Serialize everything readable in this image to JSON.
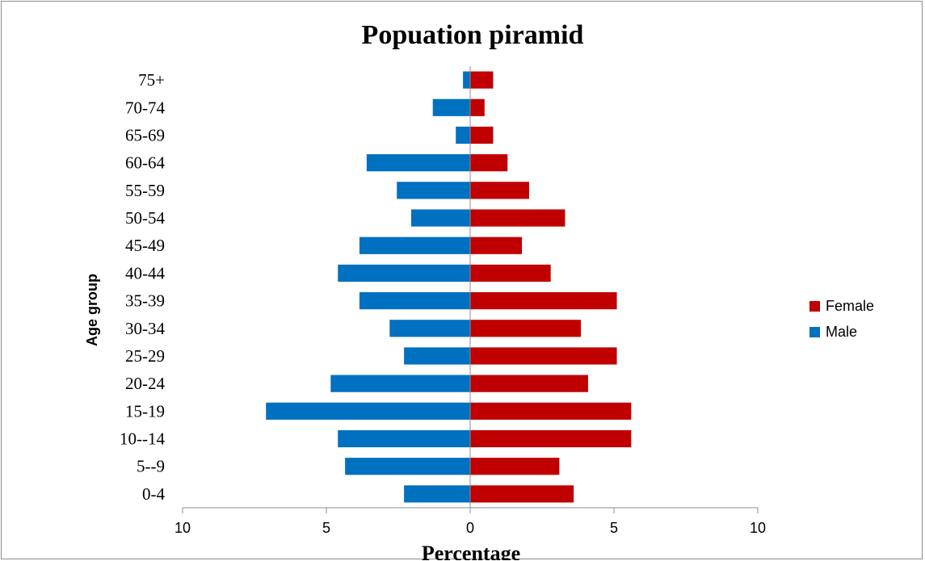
{
  "chart_data": {
    "type": "bar",
    "orientation": "horizontal",
    "title": "Popuation piramid",
    "xlabel": "Percentage",
    "ylabel": "Age group",
    "categories": [
      "0-4",
      "5--9",
      "10--14",
      "15-19",
      "20-24",
      "25-29",
      "30-34",
      "35-39",
      "40-44",
      "45-49",
      "50-54",
      "55-59",
      "60-64",
      "65-69",
      "70-74",
      "75+"
    ],
    "series": [
      {
        "name": "Female",
        "color": "#c00000",
        "values": [
          3.6,
          3.1,
          5.6,
          5.6,
          4.1,
          5.1,
          3.85,
          5.1,
          2.8,
          1.8,
          3.3,
          2.05,
          1.3,
          0.8,
          0.5,
          0.8
        ]
      },
      {
        "name": "Male",
        "color": "#0070c0",
        "values": [
          2.3,
          4.35,
          4.6,
          7.1,
          4.85,
          2.3,
          2.8,
          3.85,
          4.6,
          3.85,
          2.05,
          2.55,
          3.6,
          0.5,
          1.3,
          0.25
        ]
      }
    ],
    "xlim": [
      -10,
      10
    ],
    "xticks": [
      -10,
      -5,
      0,
      5,
      10
    ],
    "xtick_labels": [
      "10",
      "5",
      "0",
      "5",
      "10"
    ],
    "grid": false,
    "legend_position": "right"
  }
}
